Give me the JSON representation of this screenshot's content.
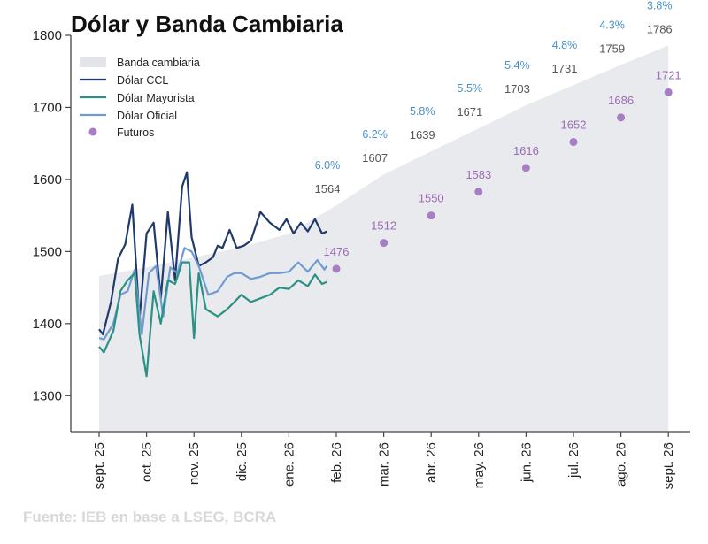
{
  "chart_data": {
    "type": "line",
    "title": "Dólar y Banda Cambiaria",
    "source": "Fuente: IEB en base a LSEG, BCRA",
    "xlabel": "",
    "ylabel": "",
    "ylim": [
      1250,
      1800
    ],
    "yticks": [
      1300,
      1400,
      1500,
      1600,
      1700,
      1800
    ],
    "xlim": [
      0,
      12
    ],
    "months": [
      "sept. 25",
      "oct. 25",
      "nov. 25",
      "dic. 25",
      "ene. 26",
      "feb. 26",
      "mar. 26",
      "abr. 26",
      "may. 26",
      "jun. 26",
      "jul. 26",
      "ago. 26",
      "sept. 26"
    ],
    "legend": [
      "Banda cambiaria",
      "Dólar CCL",
      "Dólar Mayorista",
      "Dólar Oficial",
      "Futuros"
    ],
    "colors": {
      "band": "#e9eaed",
      "ccl": "#1f3a6b",
      "mayorista": "#2a9185",
      "oficial": "#6f9bd1",
      "futuros": "#a77dc3",
      "band_label": "#555555",
      "pct_label": "#4a90c8",
      "fut_label": "#9b6bb8"
    },
    "band": {
      "x": [
        0,
        1,
        2,
        3,
        4,
        5,
        6,
        7,
        8,
        9,
        10,
        11,
        12
      ],
      "y": [
        1466,
        1478,
        1492,
        1506,
        1525,
        1564,
        1607,
        1639,
        1671,
        1703,
        1731,
        1759,
        1786
      ]
    },
    "band_labels": [
      {
        "x": 5,
        "value": "1564",
        "pct": "6.0%"
      },
      {
        "x": 6,
        "value": "1607",
        "pct": "6.2%"
      },
      {
        "x": 7,
        "value": "1639",
        "pct": "5.8%"
      },
      {
        "x": 8,
        "value": "1671",
        "pct": "5.5%"
      },
      {
        "x": 9,
        "value": "1703",
        "pct": "5.4%"
      },
      {
        "x": 10,
        "value": "1731",
        "pct": "4.8%"
      },
      {
        "x": 11,
        "value": "1759",
        "pct": "4.3%"
      },
      {
        "x": 12,
        "value": "1786",
        "pct": "3.8%"
      }
    ],
    "futuros": [
      {
        "x": 5,
        "y": 1476,
        "label": "1476"
      },
      {
        "x": 6,
        "y": 1512,
        "label": "1512"
      },
      {
        "x": 7,
        "y": 1550,
        "label": "1550"
      },
      {
        "x": 8,
        "y": 1583,
        "label": "1583"
      },
      {
        "x": 9,
        "y": 1616,
        "label": "1616"
      },
      {
        "x": 10,
        "y": 1652,
        "label": "1652"
      },
      {
        "x": 11,
        "y": 1686,
        "label": "1686"
      },
      {
        "x": 12,
        "y": 1721,
        "label": "1721"
      }
    ],
    "series": [
      {
        "name": "Dólar CCL",
        "key": "ccl",
        "x": [
          0,
          0.08,
          0.25,
          0.4,
          0.55,
          0.7,
          0.85,
          1.0,
          1.15,
          1.3,
          1.45,
          1.6,
          1.75,
          1.85,
          1.95,
          2.1,
          2.25,
          2.4,
          2.5,
          2.6,
          2.75,
          2.9,
          3.05,
          3.2,
          3.4,
          3.6,
          3.8,
          3.95,
          4.1,
          4.25,
          4.4,
          4.55,
          4.7,
          4.8
        ],
        "y": [
          1392,
          1385,
          1430,
          1490,
          1510,
          1565,
          1405,
          1525,
          1540,
          1435,
          1555,
          1460,
          1590,
          1610,
          1520,
          1480,
          1485,
          1492,
          1508,
          1505,
          1530,
          1505,
          1508,
          1515,
          1555,
          1540,
          1530,
          1545,
          1525,
          1540,
          1528,
          1545,
          1525,
          1528
        ]
      },
      {
        "name": "Dólar Oficial",
        "key": "oficial",
        "x": [
          0,
          0.1,
          0.3,
          0.45,
          0.6,
          0.75,
          0.9,
          1.05,
          1.2,
          1.35,
          1.5,
          1.65,
          1.8,
          1.95,
          2.1,
          2.3,
          2.5,
          2.7,
          2.85,
          3.0,
          3.2,
          3.4,
          3.6,
          3.8,
          4.0,
          4.2,
          4.4,
          4.6,
          4.75,
          4.8
        ],
        "y": [
          1380,
          1378,
          1400,
          1440,
          1445,
          1475,
          1385,
          1470,
          1480,
          1410,
          1478,
          1470,
          1505,
          1500,
          1480,
          1440,
          1445,
          1465,
          1470,
          1470,
          1462,
          1465,
          1470,
          1470,
          1472,
          1485,
          1472,
          1488,
          1475,
          1480
        ]
      },
      {
        "name": "Dólar Mayorista",
        "key": "mayorista",
        "x": [
          0,
          0.1,
          0.3,
          0.45,
          0.6,
          0.75,
          0.85,
          1.0,
          1.15,
          1.3,
          1.45,
          1.6,
          1.75,
          1.9,
          2.0,
          2.1,
          2.25,
          2.5,
          2.7,
          2.85,
          3.0,
          3.2,
          3.4,
          3.6,
          3.8,
          4.0,
          4.2,
          4.4,
          4.55,
          4.7,
          4.8
        ],
        "y": [
          1368,
          1360,
          1390,
          1445,
          1460,
          1470,
          1385,
          1327,
          1445,
          1400,
          1460,
          1455,
          1485,
          1485,
          1380,
          1470,
          1420,
          1410,
          1420,
          1430,
          1440,
          1430,
          1435,
          1440,
          1450,
          1448,
          1460,
          1452,
          1468,
          1455,
          1458
        ]
      }
    ]
  }
}
